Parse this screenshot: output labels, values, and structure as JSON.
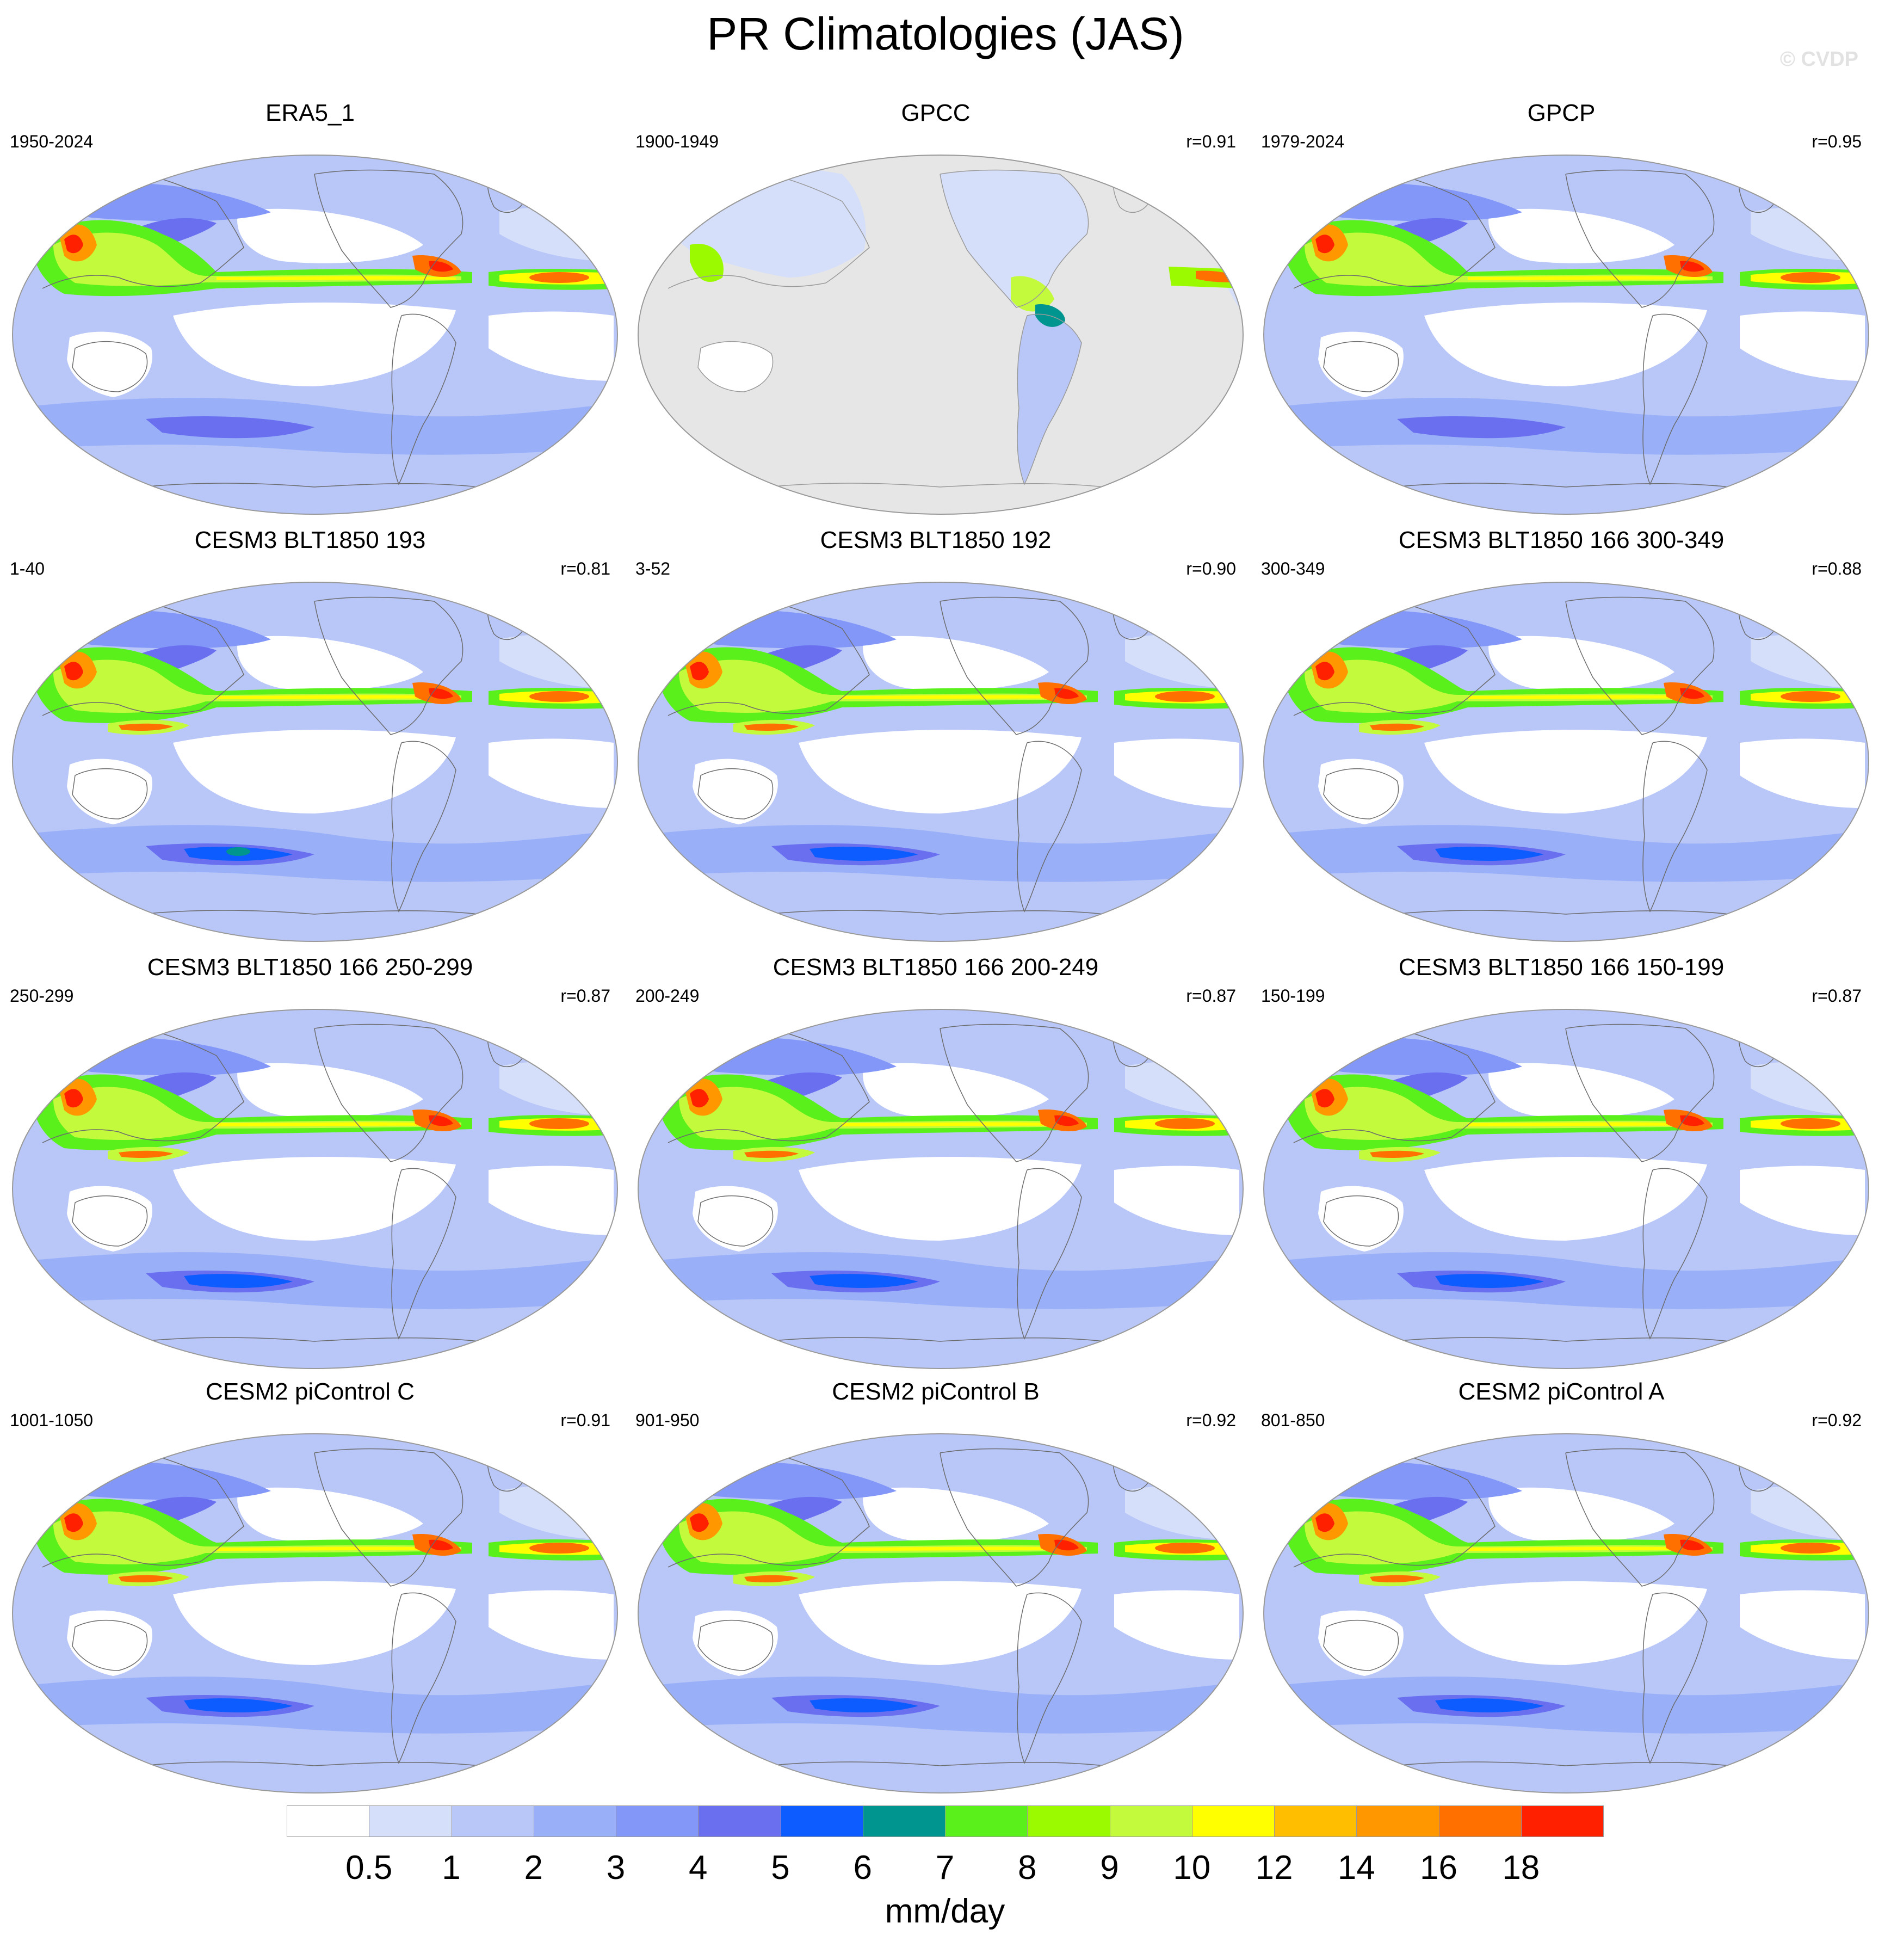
{
  "title": "PR Climatologies (JAS)",
  "watermark": "© CVDP",
  "panels": [
    {
      "title": "ERA5_1",
      "period": "1950-2024",
      "corr": "",
      "type": "era5"
    },
    {
      "title": "GPCC",
      "period": "1900-1949",
      "corr": "r=0.91",
      "type": "gpcc"
    },
    {
      "title": "GPCP",
      "period": "1979-2024",
      "corr": "r=0.95",
      "type": "gpcp"
    },
    {
      "title": "CESM3 BLT1850 193",
      "period": "1-40",
      "corr": "r=0.81",
      "type": "cesm3a"
    },
    {
      "title": "CESM3 BLT1850 192",
      "period": "3-52",
      "corr": "r=0.90",
      "type": "cesm3"
    },
    {
      "title": "CESM3 BLT1850 166 300-349",
      "period": "300-349",
      "corr": "r=0.88",
      "type": "cesm3"
    },
    {
      "title": "CESM3 BLT1850 166 250-299",
      "period": "250-299",
      "corr": "r=0.87",
      "type": "cesm3"
    },
    {
      "title": "CESM3 BLT1850 166 200-249",
      "period": "200-249",
      "corr": "r=0.87",
      "type": "cesm3"
    },
    {
      "title": "CESM3 BLT1850 166 150-199",
      "period": "150-199",
      "corr": "r=0.87",
      "type": "cesm3"
    },
    {
      "title": "CESM2 piControl C",
      "period": "1001-1050",
      "corr": "r=0.91",
      "type": "cesm2"
    },
    {
      "title": "CESM2 piControl B",
      "period": "901-950",
      "corr": "r=0.92",
      "type": "cesm2"
    },
    {
      "title": "CESM2 piControl A",
      "period": "801-850",
      "corr": "r=0.92",
      "type": "cesm2"
    }
  ],
  "colorbar": {
    "units": "mm/day",
    "labels": [
      "0.5",
      "1",
      "2",
      "3",
      "4",
      "5",
      "6",
      "7",
      "8",
      "9",
      "10",
      "12",
      "14",
      "16",
      "18"
    ],
    "colors": [
      "#ffffff",
      "#d5dffa",
      "#b8c6f8",
      "#99b0f8",
      "#8297f8",
      "#6a6ff0",
      "#0c5cff",
      "#00958f",
      "#59f01c",
      "#9bfa00",
      "#c3fa3c",
      "#ffff00",
      "#ffbf00",
      "#ff9800",
      "#ff7000",
      "#ff2000"
    ]
  }
}
